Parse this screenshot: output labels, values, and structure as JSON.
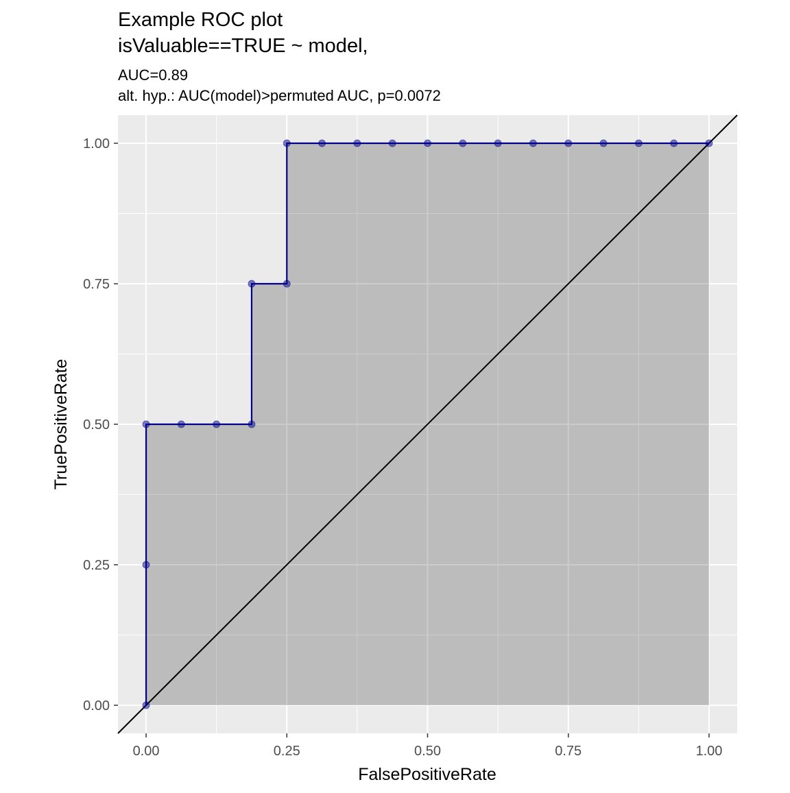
{
  "chart_data": {
    "type": "roc",
    "title": [
      "Example ROC plot",
      "isValuable==TRUE ~ model,"
    ],
    "subtitle": [
      "AUC=0.89",
      "alt. hyp.: AUC(model)>permuted AUC, p=0.0072"
    ],
    "x_label": "FalsePositiveRate",
    "y_label": "TruePositiveRate",
    "x": [
      0,
      0,
      0,
      0.0625,
      0.125,
      0.1875,
      0.1875,
      0.25,
      0.25,
      0.3125,
      0.375,
      0.4375,
      0.5,
      0.5625,
      0.625,
      0.6875,
      0.75,
      0.8125,
      0.875,
      0.9375,
      1
    ],
    "series": [
      {
        "color": "#00008b",
        "values": [
          0,
          0.25,
          0.5,
          0.5,
          0.5,
          0.5,
          0.75,
          0.75,
          1,
          1,
          1,
          1,
          1,
          1,
          1,
          1,
          1,
          1,
          1,
          1,
          1
        ]
      }
    ],
    "xlim": [
      -0.05,
      1.05
    ],
    "ylim": [
      -0.05,
      1.05
    ],
    "xticks": [
      {
        "value": 0,
        "label": "0.00"
      },
      {
        "value": 0.25,
        "label": "0.25"
      },
      {
        "value": 0.5,
        "label": "0.50"
      },
      {
        "value": 0.75,
        "label": "0.75"
      },
      {
        "value": 1,
        "label": "1.00"
      }
    ],
    "yticks": [
      {
        "value": 0,
        "label": "0.00"
      },
      {
        "value": 0.25,
        "label": "0.25"
      },
      {
        "value": 0.5,
        "label": "0.50"
      },
      {
        "value": 0.75,
        "label": "0.75"
      },
      {
        "value": 1,
        "label": "1.00"
      }
    ],
    "grid": true
  }
}
